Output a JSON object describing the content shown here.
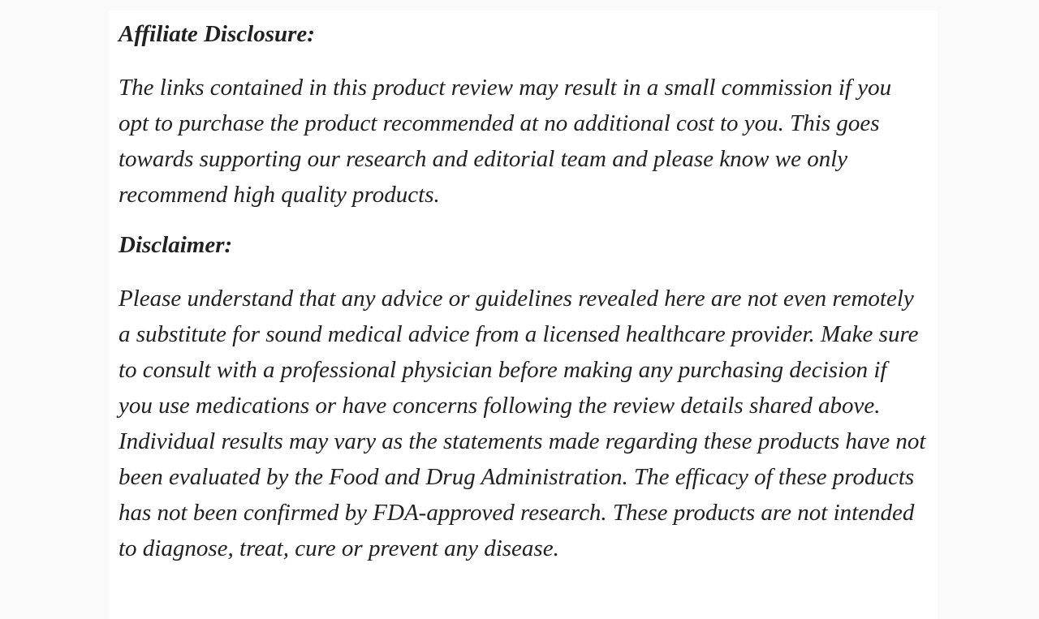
{
  "page": {
    "background_color": "#fafafa",
    "card_color": "#ffffff",
    "text_color": "#212121"
  },
  "content": {
    "affiliate_heading": "Affiliate Disclosure:",
    "affiliate_paragraph": "The links contained in this product review may result in a small commission if you opt to purchase the product recommended at no additional cost to you. This goes towards supporting our research and editorial team and please know we only recommend high quality products.",
    "disclaimer_heading": "Disclaimer:",
    "disclaimer_paragraph": "Please understand that any advice or guidelines revealed here are not even remotely a substitute for sound medical advice from a licensed healthcare provider. Make sure to consult with a professional physician before making any purchasing decision if you use medications or have concerns following the review details shared above. Individual results may vary as the statements made regarding these products have not been evaluated by the Food and Drug Administration. The efficacy of these products has not been confirmed by FDA-approved research. These products are not intended to diagnose, treat, cure or prevent any disease."
  }
}
